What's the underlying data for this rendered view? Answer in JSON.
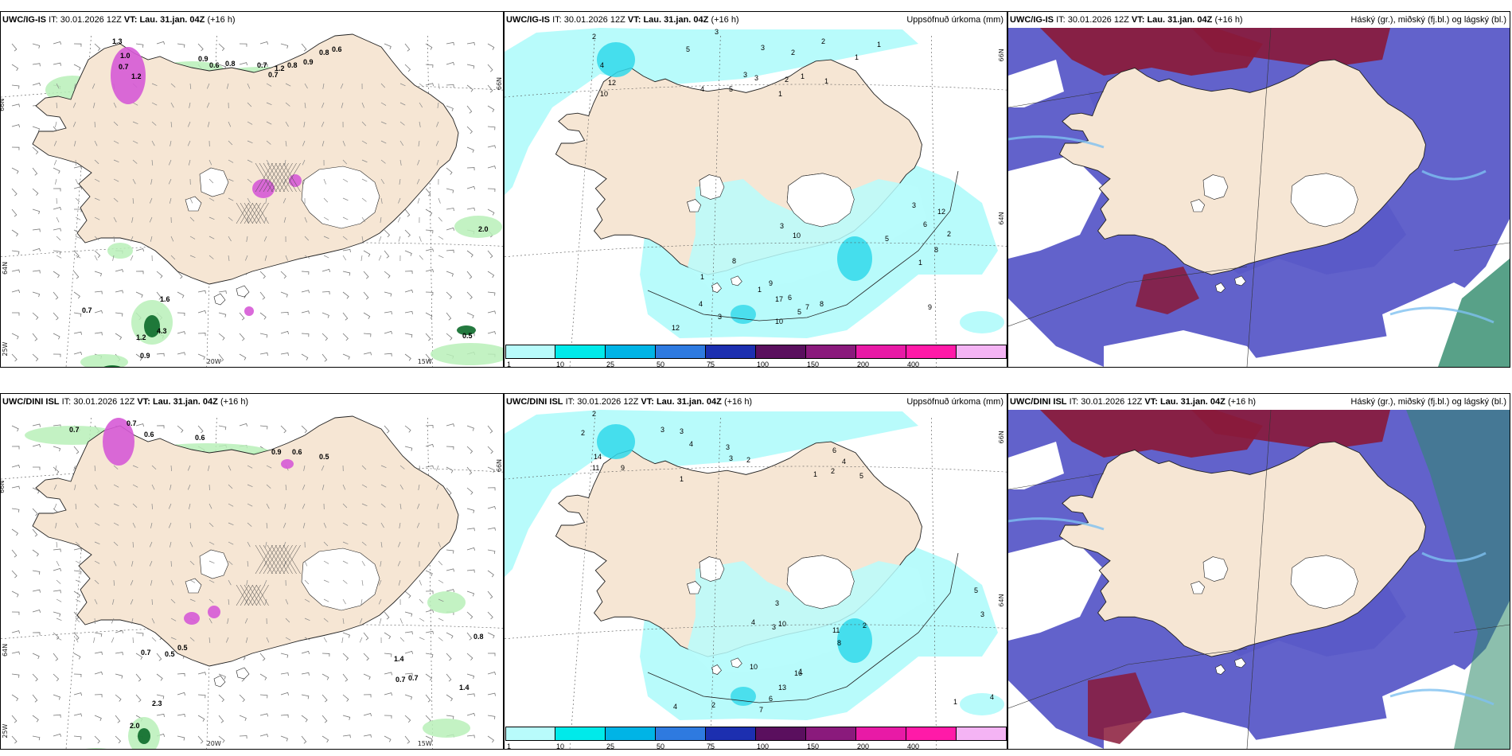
{
  "rows": [
    {
      "model": "UWC/IG-IS",
      "it_label": "IT:",
      "it": "30.01.2026 12Z",
      "vt_label": "VT:",
      "vt": "Lau. 31.jan. 04Z",
      "lead": "(+16 h)"
    },
    {
      "model": "UWC/DINI ISL",
      "it_label": "IT:",
      "it": "30.01.2026 12Z",
      "vt_label": "VT:",
      "vt": "Lau. 31.jan. 04Z",
      "lead": "(+16 h)"
    }
  ],
  "panel_titles": {
    "precip": "Uppsöfnuð úrkoma (mm)",
    "clouds": "Háský (gr.), miðský (fj.bl.) og lágský (bl.)"
  },
  "precip_colorbar": {
    "labels": [
      "1",
      "10",
      "25",
      "50",
      "75",
      "100",
      "150",
      "200",
      "400",
      ""
    ],
    "colors": [
      "#b8fbfb",
      "#00eaea",
      "#00b4e6",
      "#2e7ae0",
      "#1c2fb0",
      "#5a0f5e",
      "#8a1a7c",
      "#e81aa6",
      "#ff1aa8",
      "#f4b4f4"
    ]
  },
  "grid_labels": {
    "wind_lat": [
      "66N",
      "64N",
      "25W"
    ],
    "wind_lon": [
      "20W",
      "15W"
    ],
    "wind_east": [
      "66N"
    ],
    "precip_lat": [
      "66N",
      "64N"
    ]
  },
  "colors": {
    "land": "#f6e6d4",
    "ocean": "#ffffff",
    "glacier": "#ffffff",
    "snow_green": "#b8f0b8",
    "snow_dark": "#0c6a2a",
    "snow_purple": "#d65ad6",
    "precip_light": "#b8fbfb",
    "precip_mid": "#30d8ea",
    "cloud_low": "#5a5ac8",
    "cloud_high": "#8a1a3a",
    "cloud_mid": "#2e8a6a",
    "cloud_light": "#7ec0f0"
  },
  "wind_top_values": [
    {
      "t": "0.9"
    },
    {
      "t": "0.6"
    },
    {
      "t": "0.8"
    },
    {
      "t": "0.7"
    },
    {
      "t": "1.2"
    },
    {
      "t": "0.7"
    },
    {
      "t": "0.8"
    },
    {
      "t": "0.9"
    },
    {
      "t": "0.8"
    },
    {
      "t": "0.6"
    },
    {
      "t": "1.3"
    },
    {
      "t": "1.0"
    },
    {
      "t": "0.7"
    },
    {
      "t": "1.2"
    },
    {
      "t": "1.6"
    },
    {
      "t": "4.3"
    },
    {
      "t": "1.2"
    },
    {
      "t": "0.9"
    },
    {
      "t": "0.7"
    },
    {
      "t": "0.5"
    },
    {
      "t": "2.0"
    }
  ],
  "wind_bot_values": [
    {
      "t": "0.7"
    },
    {
      "t": "0.7"
    },
    {
      "t": "0.6"
    },
    {
      "t": "0.6"
    },
    {
      "t": "0.9"
    },
    {
      "t": "0.6"
    },
    {
      "t": "0.5"
    },
    {
      "t": "0.5"
    },
    {
      "t": "0.5"
    },
    {
      "t": "0.7"
    },
    {
      "t": "0.8"
    },
    {
      "t": "1.4"
    },
    {
      "t": "0.7"
    },
    {
      "t": "0.7"
    },
    {
      "t": "1.4"
    },
    {
      "t": "2.3"
    },
    {
      "t": "2.0"
    }
  ],
  "precip_top_values": [
    {
      "t": "2"
    },
    {
      "t": "3"
    },
    {
      "t": "5"
    },
    {
      "t": "3"
    },
    {
      "t": "2"
    },
    {
      "t": "2"
    },
    {
      "t": "4"
    },
    {
      "t": "12"
    },
    {
      "t": "10"
    },
    {
      "t": "3"
    },
    {
      "t": "5"
    },
    {
      "t": "4"
    },
    {
      "t": "3"
    },
    {
      "t": "1"
    },
    {
      "t": "1"
    },
    {
      "t": "2"
    },
    {
      "t": "1"
    },
    {
      "t": "1"
    },
    {
      "t": "1"
    },
    {
      "t": "3"
    },
    {
      "t": "6"
    },
    {
      "t": "12"
    },
    {
      "t": "8"
    },
    {
      "t": "3"
    },
    {
      "t": "10"
    },
    {
      "t": "8"
    },
    {
      "t": "9"
    },
    {
      "t": "1"
    },
    {
      "t": "17"
    },
    {
      "t": "4"
    },
    {
      "t": "3"
    },
    {
      "t": "12"
    },
    {
      "t": "10"
    },
    {
      "t": "6"
    },
    {
      "t": "5"
    },
    {
      "t": "7"
    },
    {
      "t": "8"
    },
    {
      "t": "1"
    },
    {
      "t": "1"
    },
    {
      "t": "5"
    },
    {
      "t": "2"
    },
    {
      "t": "9"
    }
  ],
  "precip_bot_values": [
    {
      "t": "2"
    },
    {
      "t": "2"
    },
    {
      "t": "3"
    },
    {
      "t": "4"
    },
    {
      "t": "3"
    },
    {
      "t": "3"
    },
    {
      "t": "14"
    },
    {
      "t": "11"
    },
    {
      "t": "9"
    },
    {
      "t": "1"
    },
    {
      "t": "3"
    },
    {
      "t": "2"
    },
    {
      "t": "6"
    },
    {
      "t": "4"
    },
    {
      "t": "2"
    },
    {
      "t": "1"
    },
    {
      "t": "5"
    },
    {
      "t": "10"
    },
    {
      "t": "11"
    },
    {
      "t": "8"
    },
    {
      "t": "2"
    },
    {
      "t": "3"
    },
    {
      "t": "4"
    },
    {
      "t": "3"
    },
    {
      "t": "10"
    },
    {
      "t": "16"
    },
    {
      "t": "13"
    },
    {
      "t": "6"
    },
    {
      "t": "7"
    },
    {
      "t": "4"
    },
    {
      "t": "2"
    },
    {
      "t": "1"
    },
    {
      "t": "1"
    },
    {
      "t": "5"
    },
    {
      "t": "3"
    },
    {
      "t": "4"
    }
  ]
}
